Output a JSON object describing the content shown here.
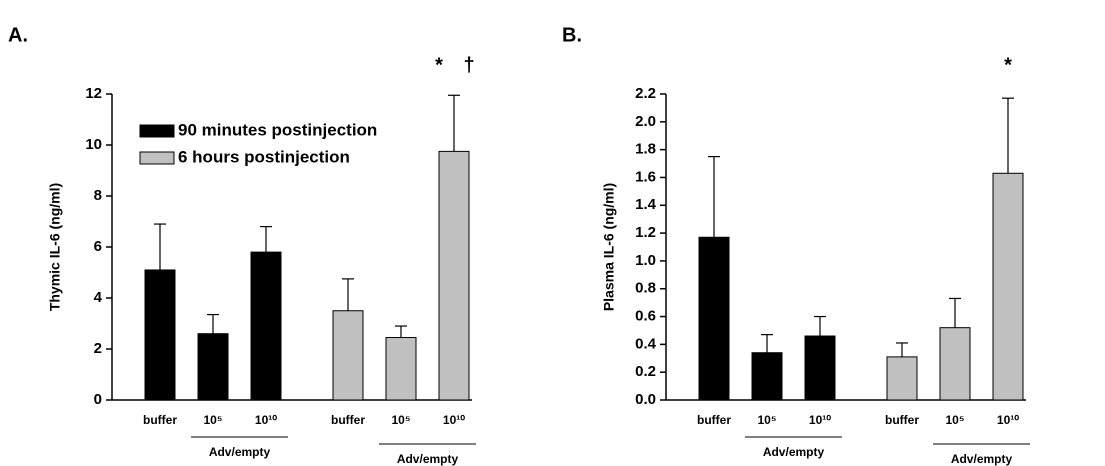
{
  "chart_data": [
    {
      "type": "bar",
      "label": "A.",
      "ylabel": "Thymic IL-6 (ng/ml)",
      "categories": [
        "buffer",
        "10⁵",
        "10¹⁰"
      ],
      "group_label": "Adv/empty",
      "series": [
        {
          "name": "90 minutes postinjection",
          "color": "#000000",
          "values": [
            5.1,
            2.6,
            5.8
          ],
          "errors": [
            1.8,
            0.75,
            1.0
          ]
        },
        {
          "name": "6 hours postinjection",
          "color": "#c0c0c0",
          "values": [
            3.5,
            2.45,
            9.75
          ],
          "errors": [
            1.25,
            0.45,
            2.2
          ]
        }
      ],
      "annotations": [
        "*",
        "†"
      ],
      "legend": "upper left",
      "ylim": [
        0,
        12
      ],
      "yticks": [
        0,
        2,
        4,
        6,
        8,
        10,
        12
      ]
    },
    {
      "type": "bar",
      "label": "B.",
      "ylabel": "Plasma IL-6 (ng/ml)",
      "categories": [
        "buffer",
        "10⁵",
        "10¹⁰"
      ],
      "group_label": "Adv/empty",
      "series": [
        {
          "color": "#000000",
          "values": [
            1.17,
            0.34,
            0.46
          ],
          "errors": [
            0.58,
            0.13,
            0.14
          ]
        },
        {
          "color": "#c0c0c0",
          "values": [
            0.31,
            0.52,
            1.63
          ],
          "errors": [
            0.1,
            0.21,
            0.54
          ]
        }
      ],
      "annotations": [
        "*"
      ],
      "ylim": [
        0,
        2.2
      ],
      "yticks": [
        {
          "value": 0,
          "label": "0.0"
        },
        0.2,
        0.4,
        0.6,
        0.8,
        {
          "value": 1,
          "label": "1.0"
        },
        1.2,
        1.4,
        1.6,
        1.8,
        {
          "value": 2,
          "label": "2.0"
        },
        2.2
      ]
    }
  ]
}
